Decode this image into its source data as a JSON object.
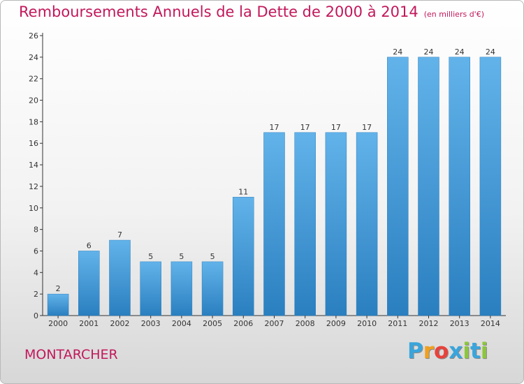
{
  "title": "Remboursements Annuels de la Dette de 2000 à 2014",
  "subtitle": "(en milliers d'€)",
  "town": "MONTARCHER",
  "logo": {
    "text": "Proxiti",
    "colors": [
      "#3aa5dc",
      "#f2a01c",
      "#e8423c",
      "#3aa5dc",
      "#8cc63f",
      "#3aa5dc",
      "#8cc63f"
    ]
  },
  "colors": {
    "title": "#c2185b",
    "bar_light": "#62b3ea",
    "bar_dark": "#2a7fbf",
    "axis": "#333333"
  },
  "chart_data": {
    "type": "bar",
    "categories": [
      "2000",
      "2001",
      "2002",
      "2003",
      "2004",
      "2005",
      "2006",
      "2007",
      "2008",
      "2009",
      "2010",
      "2011",
      "2012",
      "2013",
      "2014"
    ],
    "values": [
      2,
      6,
      7,
      5,
      5,
      5,
      11,
      17,
      17,
      17,
      17,
      24,
      24,
      24,
      24
    ],
    "ylim": [
      0,
      26
    ],
    "yticks": [
      0,
      2,
      4,
      6,
      8,
      10,
      12,
      14,
      16,
      18,
      20,
      22,
      24,
      26
    ],
    "xlabel": "",
    "ylabel": "",
    "grid": false,
    "data_labels": true
  }
}
